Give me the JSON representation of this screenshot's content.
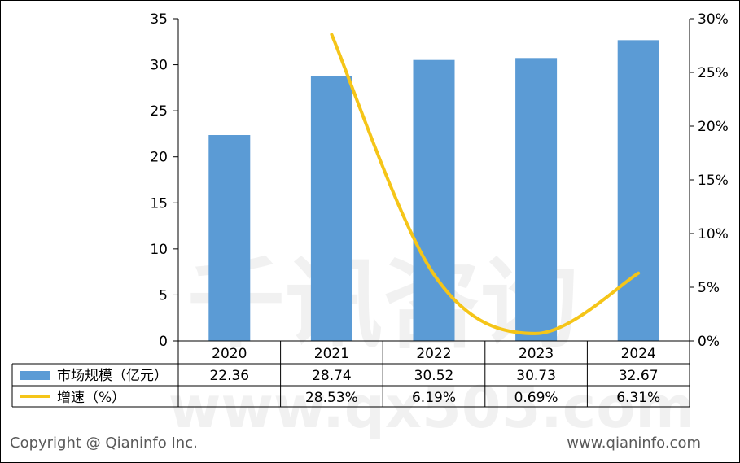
{
  "chart_data": {
    "type": "bar",
    "categories": [
      "2020",
      "2021",
      "2022",
      "2023",
      "2024"
    ],
    "series": [
      {
        "name": "市场规模（亿元）",
        "type": "bar",
        "axis": "left",
        "color": "#5b9bd5",
        "values": [
          22.36,
          28.74,
          30.52,
          30.73,
          32.67
        ],
        "labels": [
          "22.36",
          "28.74",
          "30.52",
          "30.73",
          "32.67"
        ]
      },
      {
        "name": "增速（%）",
        "type": "line",
        "axis": "right",
        "color": "#f5c518",
        "values": [
          null,
          28.53,
          6.19,
          0.69,
          6.31
        ],
        "labels": [
          "",
          "28.53%",
          "6.19%",
          "0.69%",
          "6.31%"
        ]
      }
    ],
    "ylim_left": [
      0,
      35
    ],
    "yticks_left": [
      "0",
      "5",
      "10",
      "15",
      "20",
      "25",
      "30",
      "35"
    ],
    "ylim_right": [
      0,
      30
    ],
    "yticks_right": [
      "0%",
      "5%",
      "10%",
      "15%",
      "20%",
      "25%",
      "30%"
    ],
    "grid": false,
    "legend": "data-table"
  },
  "footer": {
    "copyright": "Copyright @ Qianinfo Inc.",
    "website": "www.qianinfo.com"
  },
  "watermark": {
    "text": "千讯咨询",
    "url": "www.qx505.com"
  }
}
